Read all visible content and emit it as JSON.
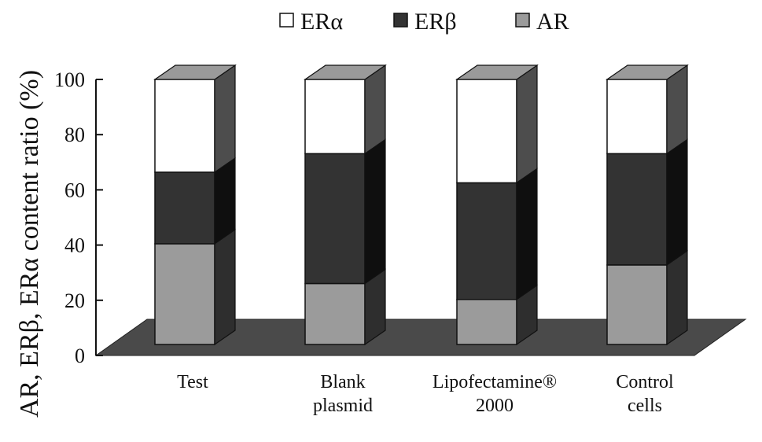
{
  "chart_data": {
    "type": "bar",
    "stacked": true,
    "ylabel": "AR, ERβ, ERα content ratio (%)",
    "xlabel": "",
    "ylim": [
      0,
      100
    ],
    "yticks": [
      "0",
      "20",
      "40",
      "60",
      "80",
      "100"
    ],
    "categories": [
      [
        "Test"
      ],
      [
        "Blank",
        "plasmid"
      ],
      [
        "Lipofectamine®",
        "2000"
      ],
      [
        "Control",
        "cells"
      ]
    ],
    "series": [
      {
        "name": "AR",
        "values": [
          38,
          23,
          17,
          30
        ],
        "color": "#9b9b9b"
      },
      {
        "name": "ERβ",
        "values": [
          27,
          49,
          44,
          42
        ],
        "color": "#333333"
      },
      {
        "name": "ERα",
        "values": [
          35,
          28,
          39,
          28
        ],
        "color": "#ffffff"
      }
    ],
    "legend": {
      "position": "top",
      "items": [
        "ERα",
        "ERβ",
        "AR"
      ]
    },
    "grid": false
  }
}
